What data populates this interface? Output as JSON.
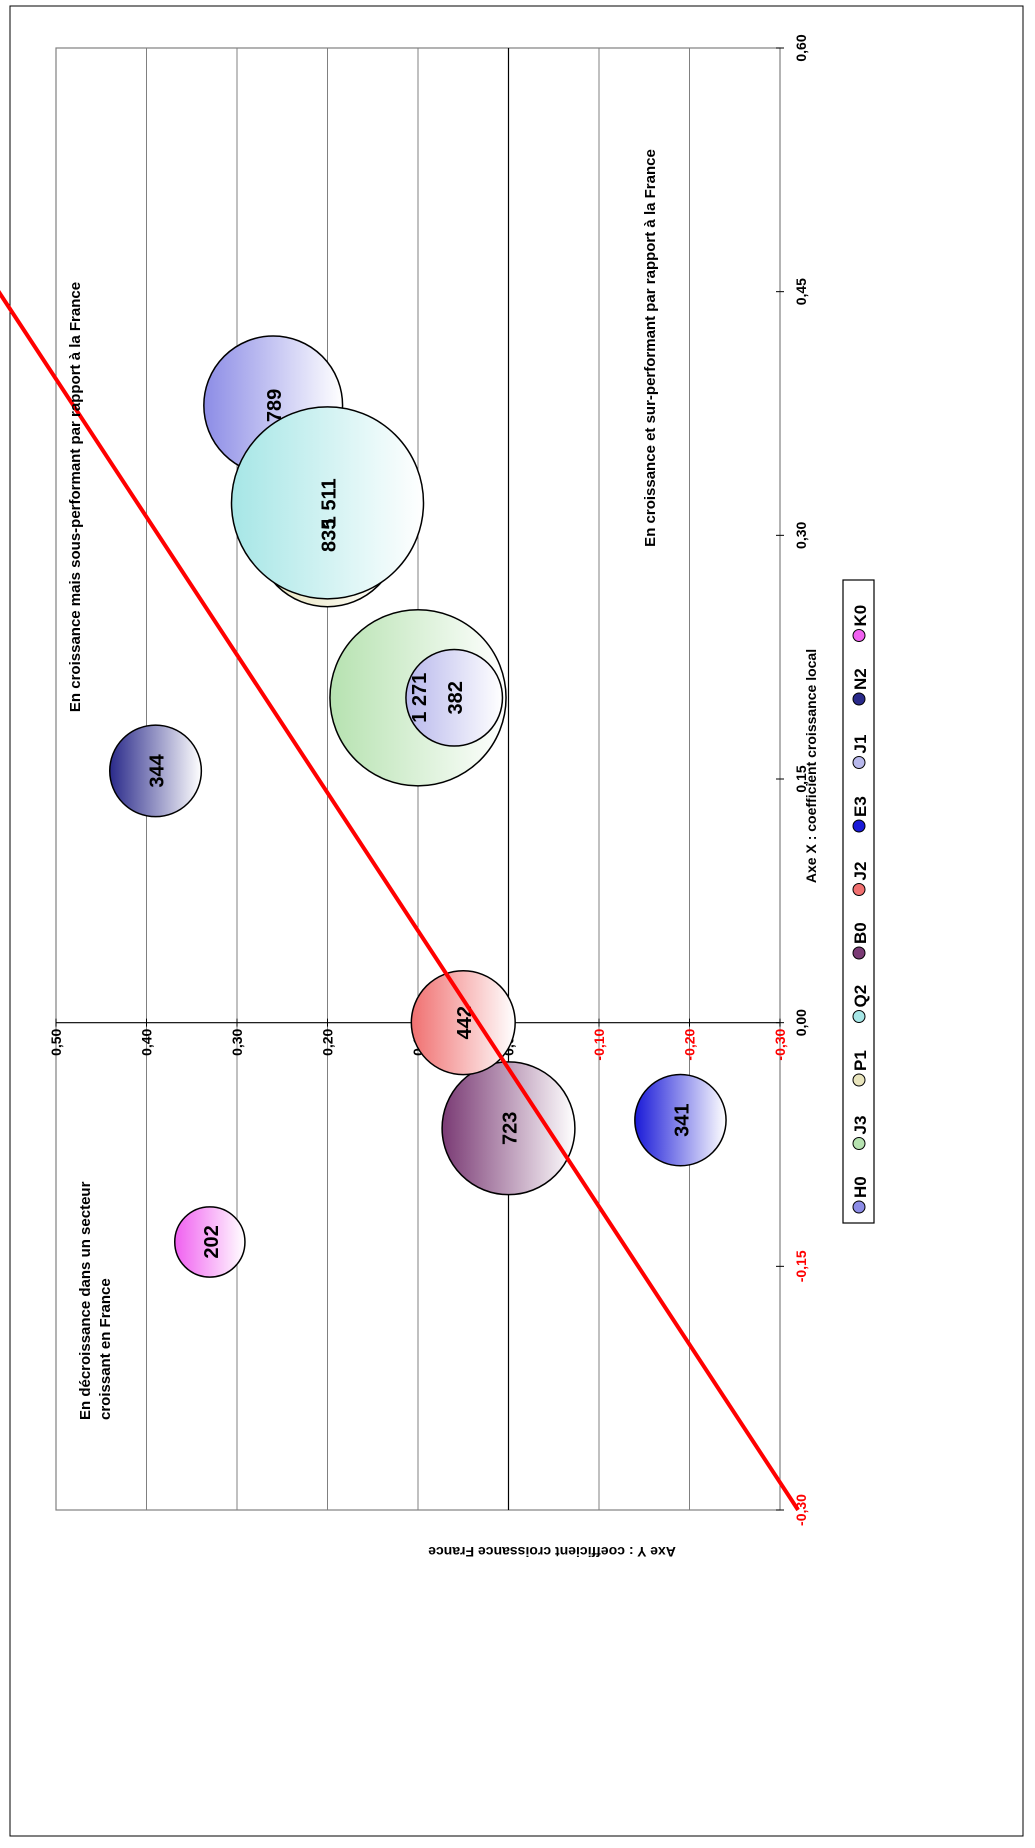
{
  "chart_data": {
    "type": "bubble",
    "title": "",
    "xlabel": "Axe X : coefficient croissance local",
    "ylabel": "Axe Y : coefficient croissance France",
    "xlim": [
      -0.3,
      0.6
    ],
    "ylim": [
      -0.3,
      0.5
    ],
    "x_ticks": [
      {
        "value": -0.3,
        "label": "-0,30",
        "negative": true
      },
      {
        "value": -0.15,
        "label": "-0,15",
        "negative": true
      },
      {
        "value": 0.0,
        "label": "0,00",
        "negative": false
      },
      {
        "value": 0.15,
        "label": "0,15",
        "negative": false
      },
      {
        "value": 0.3,
        "label": "0,30",
        "negative": false
      },
      {
        "value": 0.45,
        "label": "0,45",
        "negative": false
      },
      {
        "value": 0.6,
        "label": "0,60",
        "negative": false
      }
    ],
    "y_ticks": [
      {
        "value": 0.5,
        "label": "0,50",
        "negative": false
      },
      {
        "value": 0.4,
        "label": "0,40",
        "negative": false
      },
      {
        "value": 0.3,
        "label": "0,30",
        "negative": false
      },
      {
        "value": 0.2,
        "label": "0,20",
        "negative": false
      },
      {
        "value": 0.1,
        "label": "0,10",
        "negative": false
      },
      {
        "value": 0.0,
        "label": "0,00",
        "negative": false
      },
      {
        "value": -0.1,
        "label": "-0,10",
        "negative": true
      },
      {
        "value": -0.2,
        "label": "-0,20",
        "negative": true
      },
      {
        "value": -0.3,
        "label": "-0,30",
        "negative": true
      }
    ],
    "grid": "horizontal",
    "legend_position": "bottom",
    "orientation": "rotated 90 degrees counter-clockwise",
    "series": [
      {
        "name": "H0",
        "x": 0.38,
        "y": 0.26,
        "size": 789,
        "label": "789",
        "color": "#8c8ce6"
      },
      {
        "name": "J3",
        "x": 0.2,
        "y": 0.1,
        "size": 1271,
        "label": "1 271",
        "color": "#b6e2b0"
      },
      {
        "name": "P1",
        "x": 0.3,
        "y": 0.2,
        "size": 835,
        "label": "835",
        "color": "#e8e4bc"
      },
      {
        "name": "Q2",
        "x": 0.32,
        "y": 0.2,
        "size": 1511,
        "label": "1 511",
        "color": "#a6e6e6"
      },
      {
        "name": "B0",
        "x": -0.065,
        "y": 0.0,
        "size": 723,
        "label": "723",
        "color": "#7a3a74"
      },
      {
        "name": "J2",
        "x": 0.0,
        "y": 0.05,
        "size": 442,
        "label": "442",
        "color": "#f07070"
      },
      {
        "name": "E3",
        "x": -0.06,
        "y": -0.19,
        "size": 341,
        "label": "341",
        "color": "#1a1ad8"
      },
      {
        "name": "J1",
        "x": 0.2,
        "y": 0.06,
        "size": 382,
        "label": "382",
        "color": "#b8b8ec"
      },
      {
        "name": "N2",
        "x": 0.155,
        "y": 0.39,
        "size": 344,
        "label": "344",
        "color": "#2a2a8a"
      },
      {
        "name": "K0",
        "x": -0.135,
        "y": 0.33,
        "size": 202,
        "label": "202",
        "color": "#f060f0"
      }
    ],
    "trend_line": {
      "from": [
        -0.3,
        -0.32
      ],
      "to": [
        0.6,
        0.74
      ],
      "color": "#ff0000"
    },
    "annotations": [
      {
        "text": "En croissance mais sous-performant par rapport à la France"
      },
      {
        "text": "En croissance et sur-performant par rapport à la France"
      },
      {
        "text": "En décroissance dans un secteur"
      },
      {
        "text": "croissant en France"
      }
    ]
  }
}
